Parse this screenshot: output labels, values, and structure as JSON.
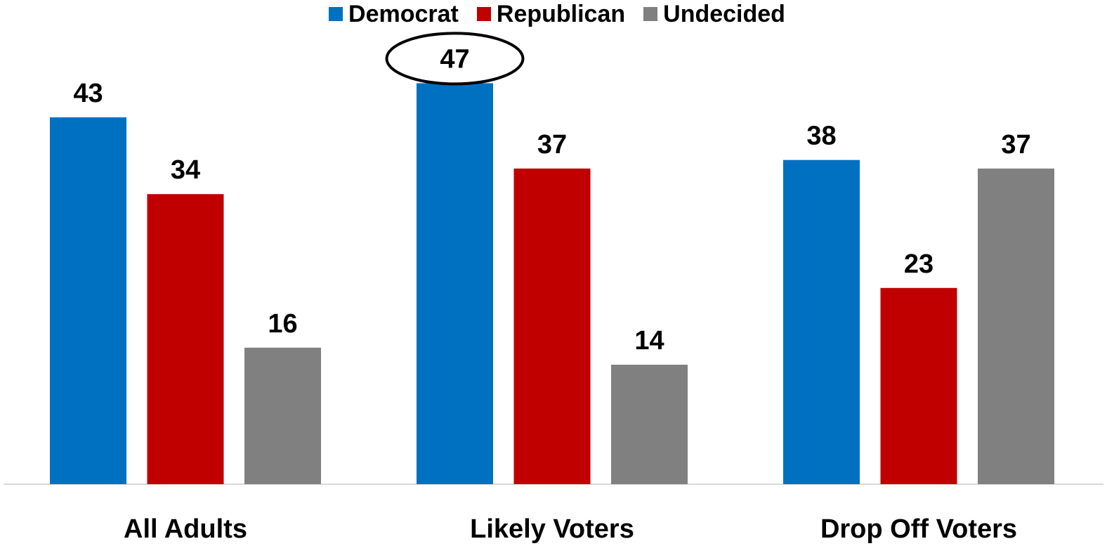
{
  "chart_data": {
    "type": "bar",
    "categories": [
      "All Adults",
      "Likely Voters",
      "Drop Off Voters"
    ],
    "series": [
      {
        "name": "Democrat",
        "color": "#0070C0",
        "values": [
          43,
          47,
          38
        ]
      },
      {
        "name": "Republican",
        "color": "#C00000",
        "values": [
          34,
          37,
          23
        ]
      },
      {
        "name": "Undecided",
        "color": "#808080",
        "values": [
          16,
          14,
          37
        ]
      }
    ],
    "ylim": [
      0,
      50
    ],
    "grid": false,
    "legend": "top-center",
    "highlight": {
      "series": "Democrat",
      "category": "Likely Voters",
      "value": 47,
      "style": "ellipse"
    },
    "axis_color": "#d9d9d9"
  }
}
